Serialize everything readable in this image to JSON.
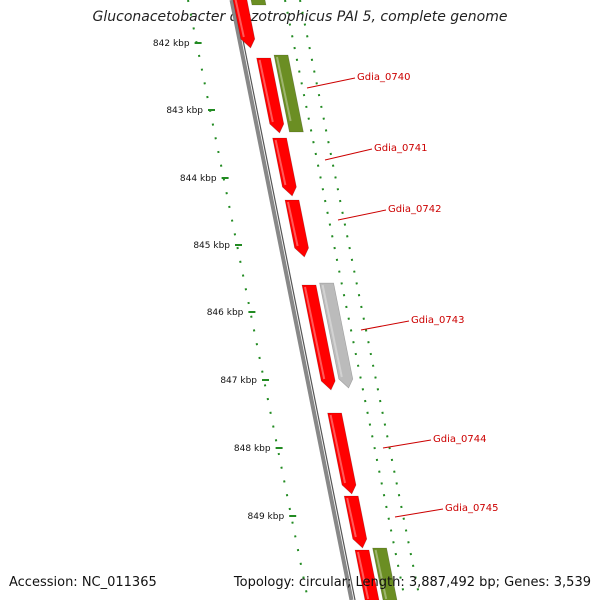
{
  "title": "Gluconacetobacter diazotrophicus PAI 5, complete genome",
  "footer": {
    "accession": "Accession: NC_011365",
    "summary": "Topology: circular; Length: 3,887,492 bp; Genes: 3,539"
  },
  "colors": {
    "forward_gene": "#ff0000",
    "reverse_gene": "#6b8e23",
    "other_gene": "#bbbbbb",
    "tick": "#228b22",
    "label": "#cc0000",
    "backbone": "#888888"
  },
  "kbp_labels": [
    "842 kbp",
    "843 kbp",
    "844 kbp",
    "845 kbp",
    "846 kbp",
    "847 kbp",
    "848 kbp",
    "849 kbp"
  ],
  "gene_labels": [
    "Gdia_0740",
    "Gdia_0741",
    "Gdia_0742",
    "Gdia_0743",
    "Gdia_0744",
    "Gdia_0745"
  ]
}
